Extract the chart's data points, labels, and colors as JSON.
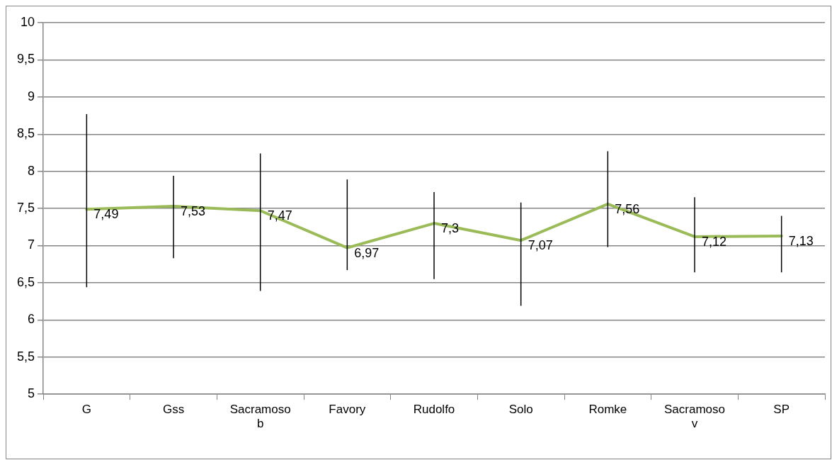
{
  "chart_data": {
    "type": "line",
    "categories": [
      "G",
      "Gss",
      "Sacramoso b",
      "Favory",
      "Rudolfo",
      "Solo",
      "Romke",
      "Sacramoso v",
      "SP"
    ],
    "series": [
      {
        "color": "#9bbb59",
        "values": [
          7.49,
          7.53,
          7.47,
          6.97,
          7.3,
          7.07,
          7.56,
          7.12,
          7.13
        ],
        "errors": [
          [
            6.44,
            8.77
          ],
          [
            6.83,
            7.94
          ],
          [
            6.39,
            8.24
          ],
          [
            6.67,
            7.89
          ],
          [
            6.55,
            7.72
          ],
          [
            6.19,
            7.58
          ],
          [
            6.98,
            8.27
          ],
          [
            6.64,
            7.65
          ],
          [
            6.64,
            7.4
          ]
        ],
        "value_labels": [
          "7,49",
          "7,53",
          "7,47",
          "6,97",
          "7,3",
          "7,07",
          "7,56",
          "7,12",
          "7,13"
        ]
      }
    ],
    "ylim": [
      5,
      10
    ],
    "yticks": [
      {
        "value": 5,
        "label": "5"
      },
      {
        "value": 5.5,
        "label": "5,5"
      },
      {
        "value": 6,
        "label": "6"
      },
      {
        "value": 6.5,
        "label": "6,5"
      },
      {
        "value": 7,
        "label": "7"
      },
      {
        "value": 7.5,
        "label": "7,5"
      },
      {
        "value": 8,
        "label": "8"
      },
      {
        "value": 8.5,
        "label": "8,5"
      },
      {
        "value": 9,
        "label": "9"
      },
      {
        "value": 9.5,
        "label": "9,5"
      },
      {
        "value": 10,
        "label": "10"
      }
    ],
    "grid": "y",
    "legend": false,
    "marker": "none",
    "line_style": "solid"
  }
}
